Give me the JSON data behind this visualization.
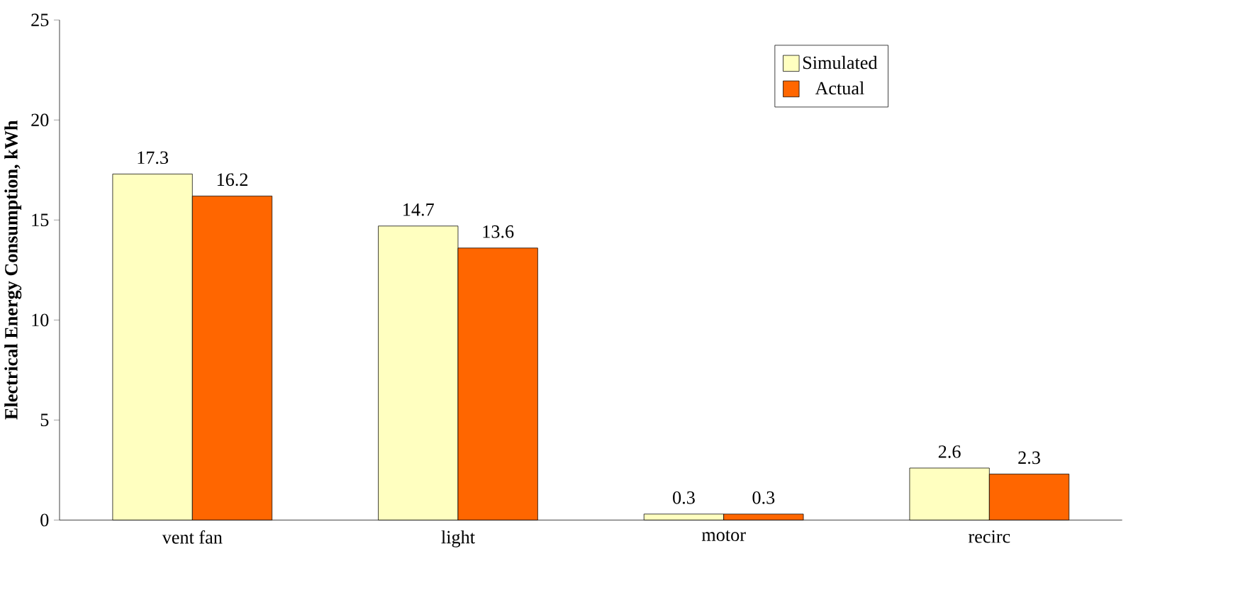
{
  "chart_data": {
    "type": "bar",
    "ylabel": "Electrical Energy Consumption, kWh",
    "categories": [
      "vent fan",
      "light",
      "motor",
      "recirc"
    ],
    "series": [
      {
        "name": "Simulated",
        "color": "#ffffc0",
        "values": [
          17.3,
          14.7,
          0.3,
          2.6
        ]
      },
      {
        "name": "Actual",
        "color": "#ff6600",
        "values": [
          16.2,
          13.6,
          0.3,
          2.3
        ]
      }
    ],
    "ylim": [
      0,
      25
    ],
    "yticks": [
      0,
      5,
      10,
      15,
      20,
      25
    ],
    "data_labels": true,
    "legend": "top right",
    "grid": false
  }
}
